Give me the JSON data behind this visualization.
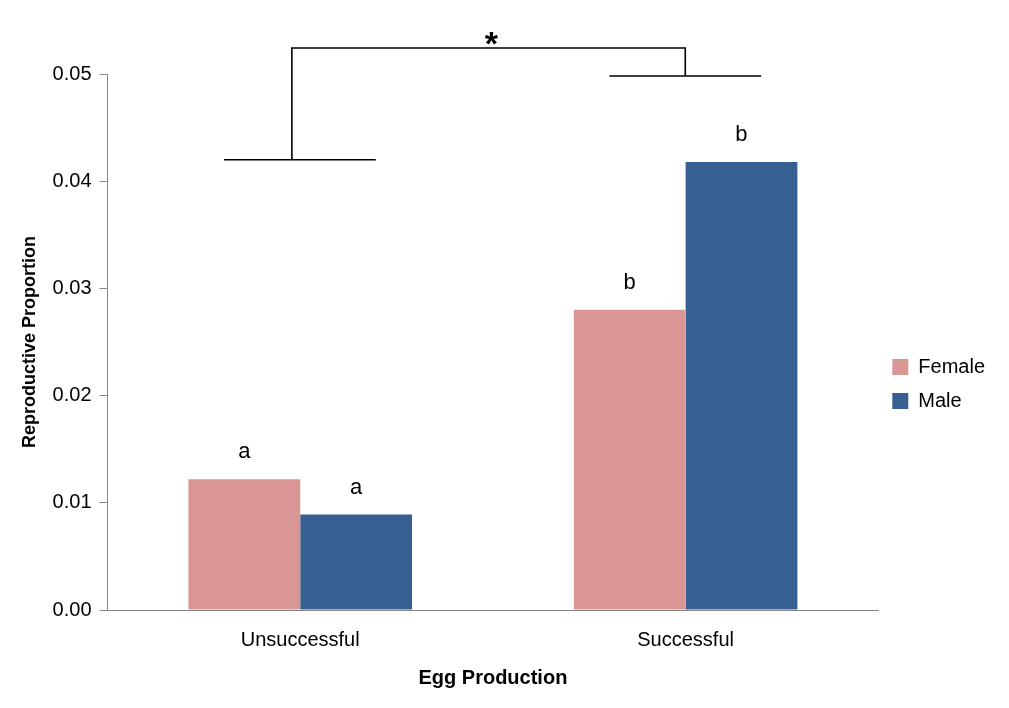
{
  "chart_data": {
    "type": "bar",
    "xlabel": "Egg Production",
    "ylabel": "Reproductive Proportion",
    "categories": [
      "Unsuccessful",
      "Successful"
    ],
    "series": [
      {
        "name": "Female",
        "color": "#d99694",
        "values": [
          0.0122,
          0.028
        ]
      },
      {
        "name": "Male",
        "color": "#376092",
        "values": [
          0.0089,
          0.0418
        ]
      }
    ],
    "ylim": [
      0,
      0.05
    ],
    "yticks": [
      {
        "value": 0,
        "label": "0.00"
      },
      {
        "value": 0.01,
        "label": "0.01"
      },
      {
        "value": 0.02,
        "label": "0.02"
      },
      {
        "value": 0.03,
        "label": "0.03"
      },
      {
        "value": 0.04,
        "label": "0.04"
      },
      {
        "value": 0.05,
        "label": "0.05"
      }
    ],
    "grid": false,
    "legend": "right",
    "annotations": [
      {
        "text": "a",
        "x": "Unsuccessful",
        "y": 0.0122
      },
      {
        "text": "a",
        "x": "Unsuccessful",
        "y": 0.0089
      },
      {
        "text": "b",
        "x": "Successful",
        "y": 0.028
      },
      {
        "text": "b",
        "x": "Successful",
        "y": 0.0418
      },
      "*"
    ]
  }
}
